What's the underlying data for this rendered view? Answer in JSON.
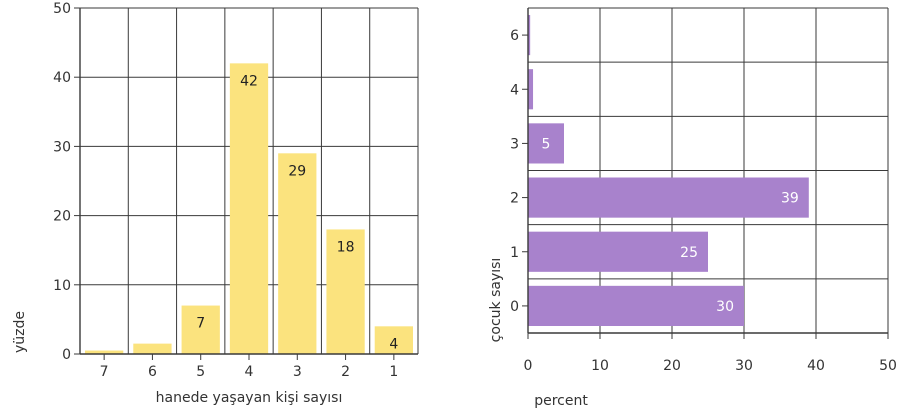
{
  "colors": {
    "left_bar": "#fbe37e",
    "right_bar": "#a882cc",
    "grid": "#3a3a3a",
    "text": "#333333",
    "bar_label_left": "#222222",
    "bar_label_right": "#ffffff"
  },
  "chart_data": [
    {
      "type": "bar",
      "orientation": "vertical",
      "categories": [
        "7",
        "6",
        "5",
        "4",
        "3",
        "2",
        "1"
      ],
      "values": [
        0.5,
        1.5,
        7,
        42,
        29,
        18,
        4
      ],
      "data_labels": [
        "",
        "",
        "7",
        "42",
        "29",
        "18",
        "4"
      ],
      "xlabel": "hanede yaşayan kişi sayısı",
      "ylabel": "yüzde",
      "ylim": [
        0,
        50
      ],
      "yticks": [
        "0",
        "10",
        "20",
        "30",
        "40",
        "50"
      ],
      "grid": true
    },
    {
      "type": "bar",
      "orientation": "horizontal",
      "categories": [
        "6",
        "4",
        "3",
        "2",
        "1",
        "0"
      ],
      "values": [
        0.3,
        0.7,
        5,
        39,
        25,
        30
      ],
      "data_labels": [
        "",
        "",
        "5",
        "39",
        "25",
        "30"
      ],
      "xlabel": "percent",
      "ylabel": "çocuk sayısı",
      "xlim": [
        0,
        50
      ],
      "xticks": [
        "0",
        "10",
        "20",
        "30",
        "40",
        "50"
      ],
      "grid": true
    }
  ]
}
